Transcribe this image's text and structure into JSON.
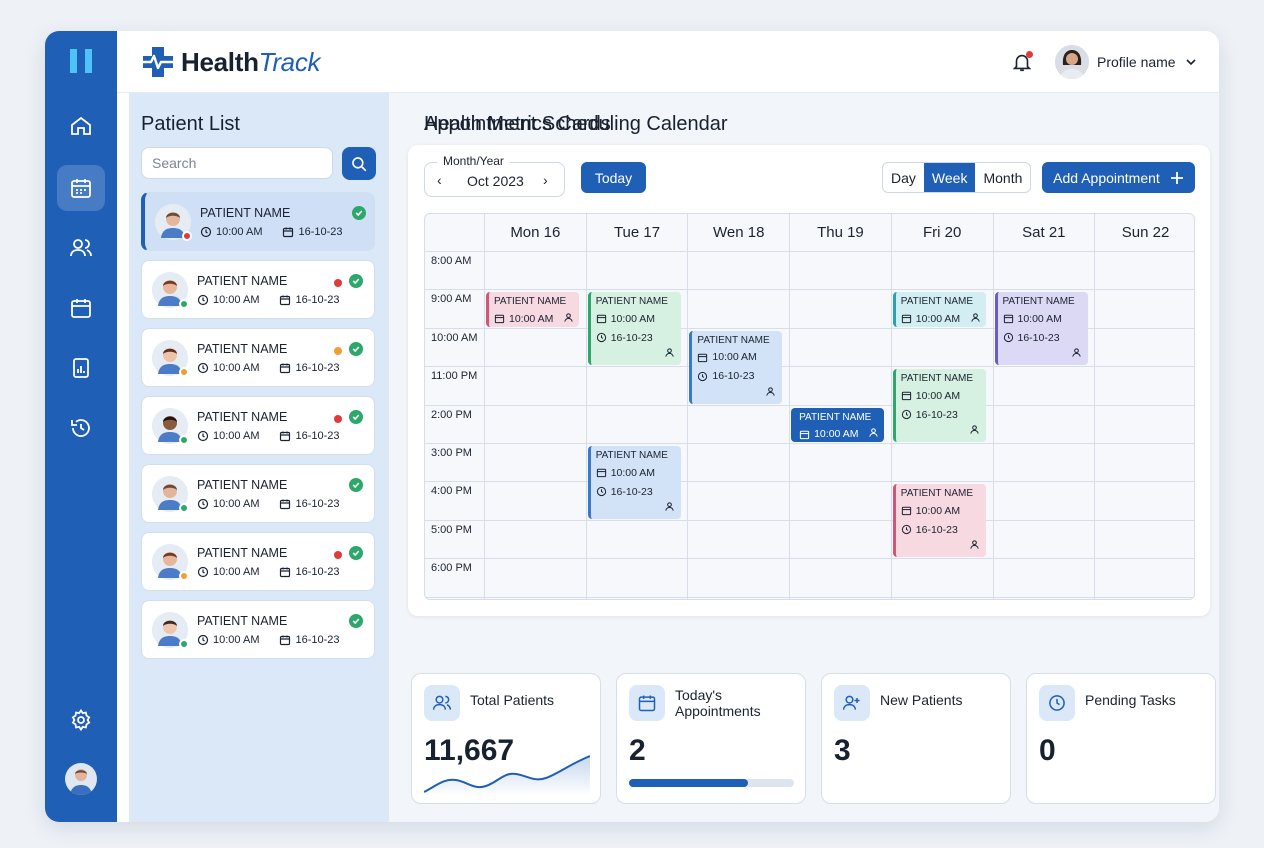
{
  "app": {
    "name_bold": "Health",
    "name_italic": "Track"
  },
  "topbar": {
    "profile_name": "Profile name"
  },
  "colors": {
    "primary": "#1f5fb6",
    "sidebar_bg": "#dbe8f8",
    "success": "#2ea86a",
    "alert": "#e03a3a",
    "warning": "#f0a030"
  },
  "rail": {
    "items": [
      "home-icon",
      "calendar-icon",
      "users-icon",
      "schedule-icon",
      "reports-icon",
      "history-icon",
      "settings-icon"
    ]
  },
  "patient_list": {
    "title": "Patient List",
    "search_placeholder": "Search",
    "patients": [
      {
        "name": "PATIENT NAME",
        "time": "10:00 AM",
        "date": "16-10-23",
        "status_color": "#e03a3a",
        "flag": false
      },
      {
        "name": "PATIENT NAME",
        "time": "10:00 AM",
        "date": "16-10-23",
        "status_color": "#2ea86a",
        "flag": "#e03a3a"
      },
      {
        "name": "PATIENT NAME",
        "time": "10:00 AM",
        "date": "16-10-23",
        "status_color": "#f0a030",
        "flag": "#f0a030"
      },
      {
        "name": "PATIENT NAME",
        "time": "10:00 AM",
        "date": "16-10-23",
        "status_color": "#2ea86a",
        "flag": "#e03a3a"
      },
      {
        "name": "PATIENT NAME",
        "time": "10:00 AM",
        "date": "16-10-23",
        "status_color": "#2ea86a",
        "flag": false
      },
      {
        "name": "PATIENT NAME",
        "time": "10:00 AM",
        "date": "16-10-23",
        "status_color": "#f0a030",
        "flag": "#e03a3a"
      },
      {
        "name": "PATIENT NAME",
        "time": "10:00 AM",
        "date": "16-10-23",
        "status_color": "#2ea86a",
        "flag": false
      }
    ]
  },
  "calendar": {
    "title": "Appointment Scheduling Calendar",
    "month_label": "Month/Year",
    "month_value": "Oct 2023",
    "today_label": "Today",
    "views": [
      "Day",
      "Week",
      "Month"
    ],
    "active_view": "Week",
    "add_label": "Add Appointment",
    "days": [
      "Mon 16",
      "Tue 17",
      "Wen 18",
      "Thu 19",
      "Fri 20",
      "Sat 21",
      "Sun 22"
    ],
    "times": [
      "8:00 AM",
      "9:00 AM",
      "10:00 AM",
      "11:00 PM",
      "2:00 PM",
      "3:00 PM",
      "4:00 PM",
      "5:00 PM",
      "6:00 PM"
    ],
    "appointments": [
      {
        "day": 0,
        "slot": 1,
        "span": 1,
        "color": "pink",
        "name": "PATIENT NAME",
        "time": "10:00 AM"
      },
      {
        "day": 1,
        "slot": 1,
        "span": 2,
        "color": "green",
        "name": "PATIENT NAME",
        "time": "10:00 AM",
        "date": "16-10-23"
      },
      {
        "day": 2,
        "slot": 2,
        "span": 2,
        "color": "blue",
        "name": "PATIENT NAME",
        "time": "10:00 AM",
        "date": "16-10-23"
      },
      {
        "day": 1,
        "slot": 5,
        "span": 2,
        "color": "blue",
        "name": "PATIENT NAME",
        "time": "10:00 AM",
        "date": "16-10-23"
      },
      {
        "day": 3,
        "slot": 4,
        "span": 1,
        "color": "navy",
        "name": "PATIENT NAME",
        "time": "10:00 AM"
      },
      {
        "day": 4,
        "slot": 1,
        "span": 1,
        "color": "teal",
        "name": "PATIENT NAME",
        "time": "10:00 AM"
      },
      {
        "day": 4,
        "slot": 3,
        "span": 2,
        "color": "green",
        "name": "PATIENT NAME",
        "time": "10:00 AM",
        "date": "16-10-23"
      },
      {
        "day": 4,
        "slot": 6,
        "span": 2,
        "color": "pink",
        "name": "PATIENT NAME",
        "time": "10:00 AM",
        "date": "16-10-23"
      },
      {
        "day": 5,
        "slot": 1,
        "span": 2,
        "color": "purple",
        "name": "PATIENT NAME",
        "time": "10:00 AM",
        "date": "16-10-23"
      }
    ]
  },
  "metrics": {
    "title": "Health Metrics Cards",
    "cards": [
      {
        "label": "Total Patients",
        "value": "11,667",
        "icon": "users-icon"
      },
      {
        "label_line1": "Today's",
        "label_line2": "Appointments",
        "value": "2",
        "icon": "calendar-icon",
        "progress": 0.72
      },
      {
        "label": "New Patients",
        "value": "3",
        "icon": "user-plus-icon"
      },
      {
        "label": "Pending Tasks",
        "value": "0",
        "icon": "clock-icon"
      }
    ]
  }
}
